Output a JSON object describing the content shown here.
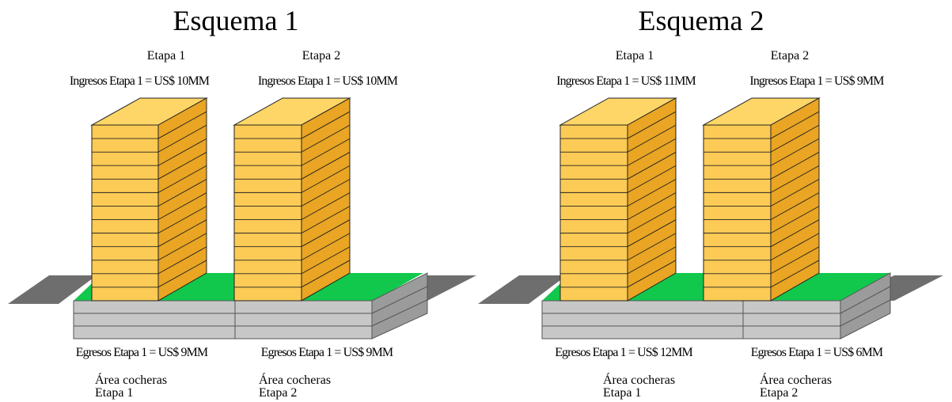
{
  "colors": {
    "tower_front": "#FCCB55",
    "tower_side": "#E9A523",
    "tower_top": "#FDD667",
    "tower_line": "#222222",
    "green": "#11C84C",
    "road": "#6E6E6E",
    "base_front": "#C7C7C7",
    "base_side": "#9B9B9B",
    "base_line": "#555555"
  },
  "schemes": [
    {
      "title": "Esquema 1",
      "stages": [
        {
          "label": "Etapa 1",
          "income": "Ingresos Etapa 1 = US$ 10MM",
          "expense": "Egresos Etapa 1 = US$ 9MM",
          "parking_line1": "Área cocheras",
          "parking_line2": "Etapa 1"
        },
        {
          "label": "Etapa 2",
          "income": "Ingresos Etapa 1 = US$ 10MM",
          "expense": "Egresos Etapa 1 = US$ 9MM",
          "parking_line1": "Área cocheras",
          "parking_line2": "Etapa 2"
        }
      ]
    },
    {
      "title": "Esquema 2",
      "stages": [
        {
          "label": "Etapa 1",
          "income": "Ingresos Etapa 1 = US$ 11MM",
          "expense": "Egresos Etapa 1 = US$ 12MM",
          "parking_line1": "Área cocheras",
          "parking_line2": "Etapa 1"
        },
        {
          "label": "Etapa 2",
          "income": "Ingresos Etapa 1 = US$ 9MM",
          "expense": "Egresos Etapa 1 = US$ 6MM",
          "parking_line1": "Área cocheras",
          "parking_line2": "Etapa 2"
        }
      ]
    }
  ]
}
